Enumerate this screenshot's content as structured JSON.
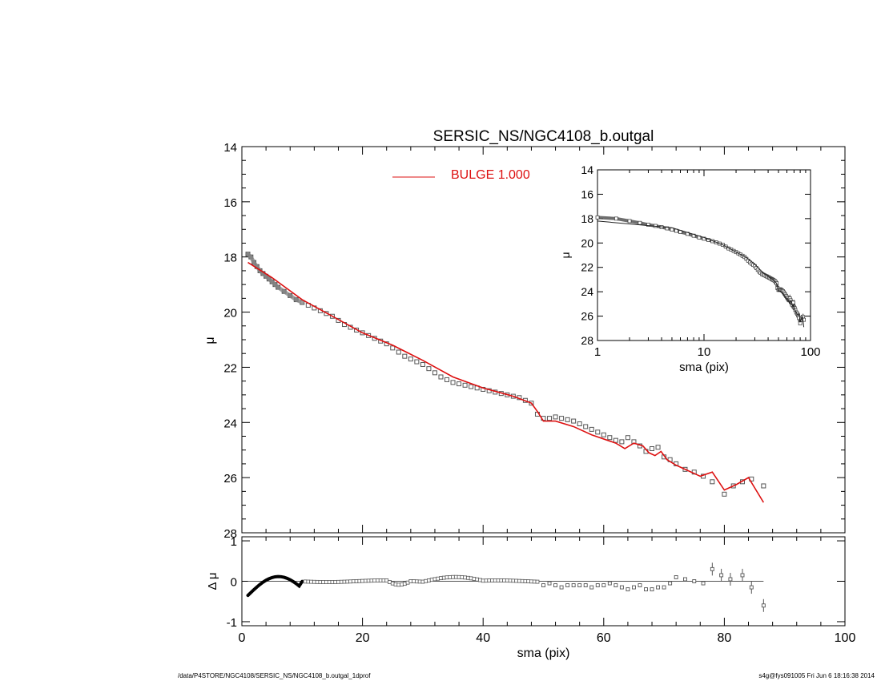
{
  "footer": {
    "left": "/data/P4STORE/NGC4108/SERSIC_NS/NGC4108_b.outgal_1dprof",
    "right": "s4g@fys091005  Fri Jun  6 18:16:38 2014"
  },
  "chart_data": [
    {
      "panel": "main",
      "type": "scatter",
      "title": "SERSIC_NS/NGC4108_b.outgal",
      "xlabel": "",
      "ylabel": "μ",
      "xlim": [
        0,
        100
      ],
      "ylim": [
        28,
        14
      ],
      "y_inverted": true,
      "yticks": [
        14,
        16,
        18,
        20,
        22,
        24,
        26,
        28
      ],
      "legend": {
        "placement": "top-center",
        "entries": [
          {
            "label": "BULGE  1.000",
            "color": "#dd1111"
          }
        ]
      },
      "series": [
        {
          "kind": "data",
          "marker": "square",
          "color": "#555555",
          "x": [
            1.0,
            1.5,
            2.0,
            2.5,
            3.0,
            3.5,
            4.0,
            4.5,
            5.0,
            5.5,
            6.0,
            7.0,
            8.0,
            9.0,
            10.0,
            11.0,
            12.0,
            13.0,
            14.0,
            15.0,
            16.0,
            17.0,
            18.0,
            19.0,
            20.0,
            21.0,
            22.0,
            23.0,
            24.0,
            25.0,
            26.0,
            27.0,
            28.0,
            29.0,
            30.0,
            31.0,
            32.0,
            33.0,
            34.0,
            35.0,
            36.0,
            37.0,
            38.0,
            39.0,
            40.0,
            41.0,
            42.0,
            43.0,
            44.0,
            45.0,
            46.0,
            47.0,
            48.0,
            49.0,
            50.0,
            51.0,
            52.0,
            53.0,
            54.0,
            55.0,
            56.0,
            57.0,
            58.0,
            59.0,
            60.0,
            61.0,
            62.0,
            63.0,
            64.0,
            65.0,
            66.0,
            67.0,
            68.0,
            69.0,
            70.0,
            71.0,
            72.0,
            73.5,
            75.0,
            76.5,
            78.0,
            80.0,
            81.5,
            83.0,
            84.5,
            86.5
          ],
          "y": [
            17.9,
            18.0,
            18.2,
            18.35,
            18.5,
            18.6,
            18.7,
            18.8,
            18.9,
            19.0,
            19.1,
            19.25,
            19.4,
            19.55,
            19.65,
            19.75,
            19.85,
            19.95,
            20.05,
            20.15,
            20.3,
            20.45,
            20.55,
            20.65,
            20.75,
            20.85,
            20.95,
            21.05,
            21.15,
            21.3,
            21.45,
            21.6,
            21.7,
            21.8,
            21.9,
            22.05,
            22.2,
            22.35,
            22.45,
            22.55,
            22.6,
            22.65,
            22.7,
            22.75,
            22.8,
            22.85,
            22.9,
            22.95,
            23.0,
            23.05,
            23.1,
            23.2,
            23.3,
            23.7,
            23.85,
            23.85,
            23.8,
            23.85,
            23.9,
            23.95,
            24.05,
            24.15,
            24.25,
            24.35,
            24.45,
            24.55,
            24.65,
            24.7,
            24.55,
            24.7,
            24.85,
            25.05,
            24.95,
            24.9,
            25.25,
            25.35,
            25.5,
            25.7,
            25.8,
            25.95,
            26.15,
            26.6,
            26.3,
            26.15,
            26.05,
            26.3
          ]
        },
        {
          "kind": "model",
          "name": "BULGE  1.000",
          "color": "#dd1111",
          "x": [
            1.0,
            5.0,
            10.0,
            15.0,
            20.0,
            25.0,
            30.0,
            35.0,
            40.0,
            45.0,
            48.0,
            49.0,
            50.0,
            52.0,
            55.0,
            58.0,
            60.0,
            62.0,
            63.5,
            65.0,
            66.5,
            67.5,
            68.5,
            69.5,
            70.5,
            72.0,
            74.0,
            76.0,
            78.0,
            80.0,
            82.0,
            84.0,
            86.5
          ],
          "y": [
            18.2,
            18.75,
            19.55,
            20.15,
            20.75,
            21.2,
            21.75,
            22.35,
            22.75,
            23.05,
            23.3,
            23.6,
            23.95,
            23.95,
            24.15,
            24.45,
            24.6,
            24.75,
            24.95,
            24.75,
            24.85,
            25.1,
            25.2,
            25.05,
            25.35,
            25.55,
            25.75,
            25.95,
            25.8,
            26.45,
            26.25,
            26.0,
            26.9
          ]
        }
      ]
    },
    {
      "panel": "inset",
      "type": "scatter",
      "xlabel": "sma (pix)",
      "ylabel": "μ",
      "xscale": "log",
      "xlim": [
        1,
        100
      ],
      "xticks": [
        "1",
        "10",
        "100"
      ],
      "ylim": [
        28,
        14
      ],
      "y_inverted": true,
      "yticks": [
        14,
        16,
        18,
        20,
        22,
        24,
        26,
        28
      ]
    },
    {
      "panel": "residual",
      "type": "scatter",
      "xlabel": "sma (pix)",
      "ylabel": "Δ μ",
      "xlim": [
        0,
        100
      ],
      "xticks": [
        0,
        20,
        40,
        60,
        80,
        100
      ],
      "ylim": [
        -1.1,
        1.1
      ],
      "yticks": [
        -1,
        0,
        1
      ],
      "reference_line": 0,
      "series": [
        {
          "kind": "residual",
          "marker": "square",
          "color": "#555555",
          "x": [
            50,
            51,
            52,
            53,
            54,
            55,
            56,
            57,
            58,
            59,
            60,
            61,
            62,
            63,
            64,
            65,
            66,
            67,
            68,
            69,
            70,
            71,
            72,
            73.5,
            75,
            76.5,
            78,
            79.5,
            81,
            83,
            84.5,
            86.5
          ],
          "y": [
            -0.1,
            -0.05,
            -0.1,
            -0.15,
            -0.1,
            -0.1,
            -0.1,
            -0.1,
            -0.15,
            -0.1,
            -0.1,
            -0.05,
            -0.1,
            -0.15,
            -0.2,
            -0.15,
            -0.1,
            -0.2,
            -0.2,
            -0.15,
            -0.15,
            -0.05,
            0.1,
            0.05,
            0.0,
            -0.05,
            0.3,
            0.15,
            0.05,
            0.15,
            -0.15,
            -0.6
          ]
        }
      ]
    }
  ]
}
